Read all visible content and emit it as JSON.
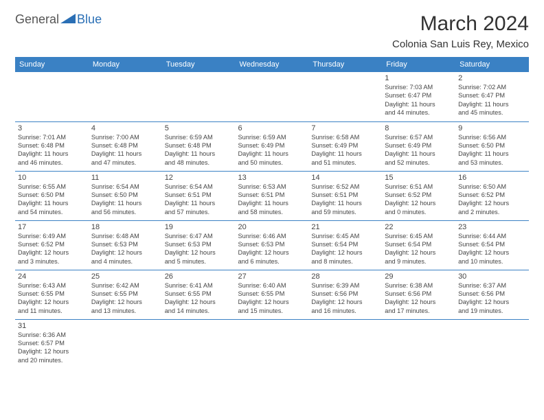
{
  "brand": {
    "general": "General",
    "blue": "Blue"
  },
  "title": "March 2024",
  "location": "Colonia San Luis Rey, Mexico",
  "colors": {
    "header_bg": "#3a81c4",
    "header_text": "#ffffff",
    "border": "#3a81c4",
    "text": "#444444",
    "brand_gray": "#555555",
    "brand_blue": "#2a6fb5",
    "page_bg": "#ffffff"
  },
  "fonts": {
    "base": "Arial",
    "daynum_size": 11,
    "dayinfo_size": 9.2,
    "title_size": 30,
    "location_size": 15,
    "th_size": 11
  },
  "weekdays": [
    "Sunday",
    "Monday",
    "Tuesday",
    "Wednesday",
    "Thursday",
    "Friday",
    "Saturday"
  ],
  "weeks": [
    [
      null,
      null,
      null,
      null,
      null,
      {
        "n": "1",
        "sr": "7:03 AM",
        "ss": "6:47 PM",
        "dh": "11",
        "dm": "44"
      },
      {
        "n": "2",
        "sr": "7:02 AM",
        "ss": "6:47 PM",
        "dh": "11",
        "dm": "45"
      }
    ],
    [
      {
        "n": "3",
        "sr": "7:01 AM",
        "ss": "6:48 PM",
        "dh": "11",
        "dm": "46"
      },
      {
        "n": "4",
        "sr": "7:00 AM",
        "ss": "6:48 PM",
        "dh": "11",
        "dm": "47"
      },
      {
        "n": "5",
        "sr": "6:59 AM",
        "ss": "6:48 PM",
        "dh": "11",
        "dm": "48"
      },
      {
        "n": "6",
        "sr": "6:59 AM",
        "ss": "6:49 PM",
        "dh": "11",
        "dm": "50"
      },
      {
        "n": "7",
        "sr": "6:58 AM",
        "ss": "6:49 PM",
        "dh": "11",
        "dm": "51"
      },
      {
        "n": "8",
        "sr": "6:57 AM",
        "ss": "6:49 PM",
        "dh": "11",
        "dm": "52"
      },
      {
        "n": "9",
        "sr": "6:56 AM",
        "ss": "6:50 PM",
        "dh": "11",
        "dm": "53"
      }
    ],
    [
      {
        "n": "10",
        "sr": "6:55 AM",
        "ss": "6:50 PM",
        "dh": "11",
        "dm": "54"
      },
      {
        "n": "11",
        "sr": "6:54 AM",
        "ss": "6:50 PM",
        "dh": "11",
        "dm": "56"
      },
      {
        "n": "12",
        "sr": "6:54 AM",
        "ss": "6:51 PM",
        "dh": "11",
        "dm": "57"
      },
      {
        "n": "13",
        "sr": "6:53 AM",
        "ss": "6:51 PM",
        "dh": "11",
        "dm": "58"
      },
      {
        "n": "14",
        "sr": "6:52 AM",
        "ss": "6:51 PM",
        "dh": "11",
        "dm": "59"
      },
      {
        "n": "15",
        "sr": "6:51 AM",
        "ss": "6:52 PM",
        "dh": "12",
        "dm": "0"
      },
      {
        "n": "16",
        "sr": "6:50 AM",
        "ss": "6:52 PM",
        "dh": "12",
        "dm": "2"
      }
    ],
    [
      {
        "n": "17",
        "sr": "6:49 AM",
        "ss": "6:52 PM",
        "dh": "12",
        "dm": "3"
      },
      {
        "n": "18",
        "sr": "6:48 AM",
        "ss": "6:53 PM",
        "dh": "12",
        "dm": "4"
      },
      {
        "n": "19",
        "sr": "6:47 AM",
        "ss": "6:53 PM",
        "dh": "12",
        "dm": "5"
      },
      {
        "n": "20",
        "sr": "6:46 AM",
        "ss": "6:53 PM",
        "dh": "12",
        "dm": "6"
      },
      {
        "n": "21",
        "sr": "6:45 AM",
        "ss": "6:54 PM",
        "dh": "12",
        "dm": "8"
      },
      {
        "n": "22",
        "sr": "6:45 AM",
        "ss": "6:54 PM",
        "dh": "12",
        "dm": "9"
      },
      {
        "n": "23",
        "sr": "6:44 AM",
        "ss": "6:54 PM",
        "dh": "12",
        "dm": "10"
      }
    ],
    [
      {
        "n": "24",
        "sr": "6:43 AM",
        "ss": "6:55 PM",
        "dh": "12",
        "dm": "11"
      },
      {
        "n": "25",
        "sr": "6:42 AM",
        "ss": "6:55 PM",
        "dh": "12",
        "dm": "13"
      },
      {
        "n": "26",
        "sr": "6:41 AM",
        "ss": "6:55 PM",
        "dh": "12",
        "dm": "14"
      },
      {
        "n": "27",
        "sr": "6:40 AM",
        "ss": "6:55 PM",
        "dh": "12",
        "dm": "15"
      },
      {
        "n": "28",
        "sr": "6:39 AM",
        "ss": "6:56 PM",
        "dh": "12",
        "dm": "16"
      },
      {
        "n": "29",
        "sr": "6:38 AM",
        "ss": "6:56 PM",
        "dh": "12",
        "dm": "17"
      },
      {
        "n": "30",
        "sr": "6:37 AM",
        "ss": "6:56 PM",
        "dh": "12",
        "dm": "19"
      }
    ],
    [
      {
        "n": "31",
        "sr": "6:36 AM",
        "ss": "6:57 PM",
        "dh": "12",
        "dm": "20"
      },
      null,
      null,
      null,
      null,
      null,
      null
    ]
  ],
  "labels": {
    "sunrise": "Sunrise:",
    "sunset": "Sunset:",
    "daylight": "Daylight:",
    "hours": "hours",
    "and": "and",
    "minutes": "minutes."
  }
}
